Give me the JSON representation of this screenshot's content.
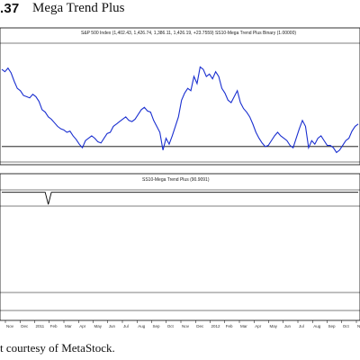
{
  "figure": {
    "number": ".37",
    "title": "Mega Trend Plus",
    "caption": "t courtesy of MetaStock."
  },
  "chart_data": [
    {
      "type": "line",
      "title": "S&P 500 Index (1,402.43, 1,426.74, 1,386.11, 1,426.19, +23.7559) SS10-Mega Trend Plus Binary (1.00000)",
      "series": [
        {
          "color": "#1a2fd0",
          "values": [
            0.78,
            0.76,
            0.79,
            0.75,
            0.68,
            0.62,
            0.6,
            0.56,
            0.55,
            0.54,
            0.57,
            0.55,
            0.51,
            0.44,
            0.42,
            0.38,
            0.36,
            0.33,
            0.3,
            0.28,
            0.27,
            0.25,
            0.26,
            0.22,
            0.19,
            0.15,
            0.12,
            0.18,
            0.2,
            0.22,
            0.2,
            0.17,
            0.16,
            0.2,
            0.24,
            0.25,
            0.3,
            0.32,
            0.34,
            0.36,
            0.38,
            0.35,
            0.34,
            0.36,
            0.4,
            0.44,
            0.46,
            0.43,
            0.42,
            0.35,
            0.3,
            0.25,
            0.1,
            0.2,
            0.15,
            0.22,
            0.3,
            0.38,
            0.52,
            0.58,
            0.62,
            0.6,
            0.72,
            0.66,
            0.8,
            0.78,
            0.72,
            0.74,
            0.7,
            0.76,
            0.72,
            0.62,
            0.58,
            0.52,
            0.5,
            0.55,
            0.6,
            0.5,
            0.45,
            0.42,
            0.38,
            0.32,
            0.25,
            0.2,
            0.16,
            0.13,
            0.14,
            0.18,
            0.22,
            0.25,
            0.22,
            0.2,
            0.18,
            0.14,
            0.12,
            0.2,
            0.28,
            0.35,
            0.3,
            0.12,
            0.18,
            0.15,
            0.2,
            0.22,
            0.18,
            0.14,
            0.14,
            0.12,
            0.08,
            0.1,
            0.14,
            0.18,
            0.2,
            0.26,
            0.3,
            0.32
          ]
        },
        {
          "color": "#000000",
          "values": [
            0.13,
            0.13,
            0.13,
            0.13,
            0.13,
            0.13,
            0.13,
            0.13,
            0.13,
            0.13,
            0.13,
            0.13,
            0.13,
            0.13,
            0.13,
            0.13,
            0.13,
            0.13,
            0.13,
            0.13,
            0.13,
            0.13,
            0.13,
            0.13,
            0.13,
            0.13,
            0.13,
            0.13,
            0.13,
            0.13,
            0.13,
            0.13,
            0.13,
            0.13,
            0.13,
            0.13,
            0.13,
            0.13,
            0.13,
            0.13,
            0.13,
            0.13,
            0.13,
            0.13,
            0.13,
            0.13,
            0.13,
            0.13,
            0.13,
            0.13,
            0.13,
            0.13,
            0.13,
            0.13,
            0.13,
            0.13,
            0.13,
            0.13,
            0.13,
            0.13,
            0.13,
            0.13,
            0.13,
            0.13,
            0.13,
            0.13,
            0.13,
            0.13,
            0.13,
            0.13,
            0.13,
            0.13,
            0.13,
            0.13,
            0.13,
            0.13,
            0.13,
            0.13,
            0.13,
            0.13,
            0.13,
            0.13,
            0.13,
            0.13,
            0.13,
            0.13,
            0.13,
            0.13,
            0.13,
            0.13,
            0.13,
            0.13,
            0.13,
            0.13,
            0.13,
            0.13,
            0.13,
            0.13,
            0.13,
            0.13,
            0.13,
            0.13,
            0.13,
            0.13,
            0.13,
            0.13,
            0.13,
            0.13,
            0.13,
            0.13,
            0.13,
            0.13,
            0.13,
            0.13,
            0.13,
            0.13
          ]
        }
      ],
      "ylim": [
        0,
        1
      ],
      "grid": false
    },
    {
      "type": "line",
      "title": "SS10-Mega Trend Plus (90.9091)",
      "series": [
        {
          "color": "#000000",
          "values": [
            0.98,
            0.98,
            0.98,
            0.98,
            0.98,
            0.98,
            0.98,
            0.98,
            0.98,
            0.98,
            0.98,
            0.98,
            0.98,
            0.98,
            0.98,
            0.88,
            0.98,
            0.98,
            0.98,
            0.98,
            0.98,
            0.98,
            0.98,
            0.98,
            0.98,
            0.98,
            0.98,
            0.98,
            0.98,
            0.98,
            0.98,
            0.98,
            0.98,
            0.98,
            0.98,
            0.98,
            0.98,
            0.98,
            0.98,
            0.98,
            0.98,
            0.98,
            0.98,
            0.98,
            0.98,
            0.98,
            0.98,
            0.98,
            0.98,
            0.98,
            0.98,
            0.98,
            0.98,
            0.98,
            0.98,
            0.98,
            0.98,
            0.98,
            0.98,
            0.98,
            0.98,
            0.98,
            0.98,
            0.98,
            0.98,
            0.98,
            0.98,
            0.98,
            0.98,
            0.98,
            0.98,
            0.98,
            0.98,
            0.98,
            0.98,
            0.98,
            0.98,
            0.98,
            0.98,
            0.98,
            0.98,
            0.98,
            0.98,
            0.98,
            0.98,
            0.98,
            0.98,
            0.98,
            0.98,
            0.98,
            0.98,
            0.98,
            0.98,
            0.98,
            0.98,
            0.98,
            0.98,
            0.98,
            0.98,
            0.98,
            0.98,
            0.98,
            0.98,
            0.98,
            0.98,
            0.98,
            0.98,
            0.98,
            0.98,
            0.98,
            0.98,
            0.98,
            0.98,
            0.98,
            0.98,
            0.98
          ]
        }
      ],
      "ylim": [
        0,
        1
      ],
      "grid": false
    }
  ],
  "x_ticks": [
    "Nov",
    "Dec",
    "2011",
    "Feb",
    "Mar",
    "Apr",
    "May",
    "Jun",
    "Jul",
    "Aug",
    "Sep",
    "Oct",
    "Nov",
    "Dec",
    "2012",
    "Feb",
    "Mar",
    "Apr",
    "May",
    "Jun",
    "Jul",
    "Aug",
    "Sep",
    "Oct",
    "Nov"
  ]
}
